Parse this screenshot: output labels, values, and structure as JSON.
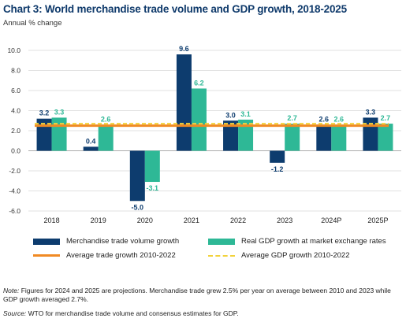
{
  "header": {
    "title": "Chart 3: World merchandise trade volume and GDP growth, 2018-2025",
    "subtitle": "Annual % change"
  },
  "colors": {
    "trade": "#0d3c6e",
    "gdp": "#2eb896",
    "avg_trade": "#f08a24",
    "avg_gdp": "#f2d23c",
    "gdp_label": "#2eb896",
    "trade_label": "#0d3c6e"
  },
  "chart_data": {
    "type": "bar",
    "title": "Chart 3: World merchandise trade volume and GDP growth, 2018-2025",
    "subtitle": "Annual % change",
    "categories": [
      "2018",
      "2019",
      "2020",
      "2021",
      "2022",
      "2023",
      "2024P",
      "2025P"
    ],
    "series": [
      {
        "name": "Merchandise trade volume growth",
        "values": [
          3.2,
          0.4,
          -5.0,
          9.6,
          3.0,
          -1.2,
          2.6,
          3.3
        ]
      },
      {
        "name": "Real GDP growth at market exchange rates",
        "values": [
          3.3,
          2.6,
          -3.1,
          6.2,
          3.1,
          2.7,
          2.6,
          2.7
        ]
      }
    ],
    "reference_lines": [
      {
        "name": "Average trade growth 2010-2022",
        "value": 2.5,
        "style": "solid"
      },
      {
        "name": "Average GDP growth 2010-2022",
        "value": 2.7,
        "style": "dashed"
      }
    ],
    "data_labels": [
      [
        "3.2",
        "0.4",
        "-5.0",
        "9.6",
        "3.0",
        "-1.2",
        "2.6",
        "3.3"
      ],
      [
        "3.3",
        "2.6",
        "-3.1",
        "6.2",
        "3.1",
        "2.7",
        "2.6",
        "2.7"
      ]
    ],
    "y_ticks": [
      "10.0",
      "8.0",
      "6.0",
      "4.0",
      "2.0",
      "0.0",
      "-2.0",
      "-4.0",
      "-6.0"
    ],
    "ylim": [
      -6,
      10
    ],
    "grid": "horizontal",
    "legend_position": "bottom"
  },
  "legend": {
    "trade": "Merchandise trade volume growth",
    "gdp": "Real GDP growth at market exchange rates",
    "avg_trade": "Average trade growth 2010-2022",
    "avg_gdp": "Average GDP growth 2010-2022"
  },
  "footer": {
    "note_label": "Note:",
    "note_text": " Figures for 2024 and 2025 are projections. Merchandise trade grew 2.5% per year on average between 2010 and 2023 while GDP growth averaged 2.7%.",
    "source_label": "Source:",
    "source_text": " WTO for merchandise trade volume and consensus estimates for GDP."
  }
}
